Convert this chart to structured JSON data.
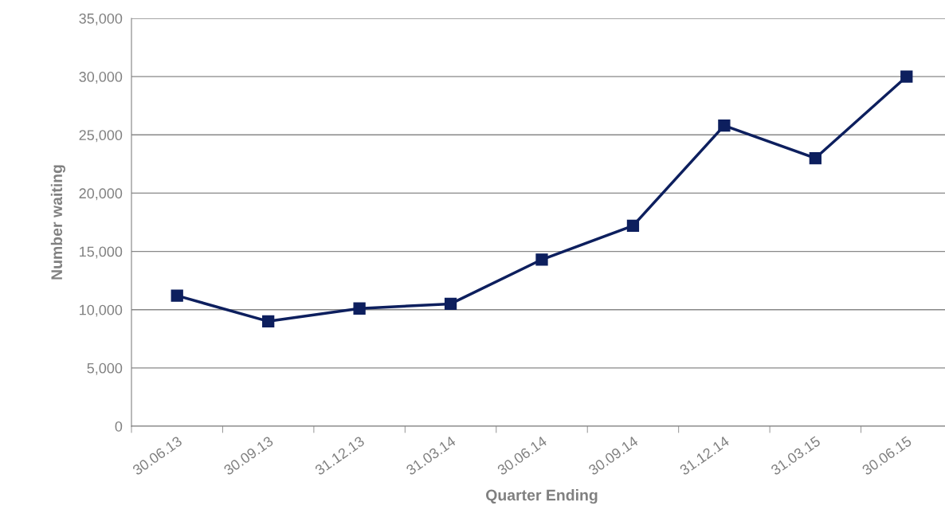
{
  "chart_data": {
    "type": "line",
    "xlabel": "Quarter Ending",
    "ylabel": "Number waiting",
    "categories": [
      "30.06.13",
      "30.09.13",
      "31.12.13",
      "31.03.14",
      "30.06.14",
      "30.09.14",
      "31.12.14",
      "31.03.15",
      "30.06.15"
    ],
    "series": [
      {
        "color": "#0d1f5e",
        "values": [
          11200,
          9000,
          10100,
          10500,
          14300,
          17200,
          25800,
          23000,
          30000
        ]
      }
    ],
    "ylim": [
      0,
      35000
    ],
    "yticks": [
      {
        "value": 0,
        "label": "0"
      },
      {
        "value": 5000,
        "label": "5,000"
      },
      {
        "value": 10000,
        "label": "10,000"
      },
      {
        "value": 15000,
        "label": "15,000"
      },
      {
        "value": 20000,
        "label": "20,000"
      },
      {
        "value": 25000,
        "label": "25,000"
      },
      {
        "value": 30000,
        "label": "30,000"
      },
      {
        "value": 35000,
        "label": "35,000"
      }
    ],
    "grid": "y",
    "legend": false,
    "marker": "square",
    "line_style": "solid"
  }
}
